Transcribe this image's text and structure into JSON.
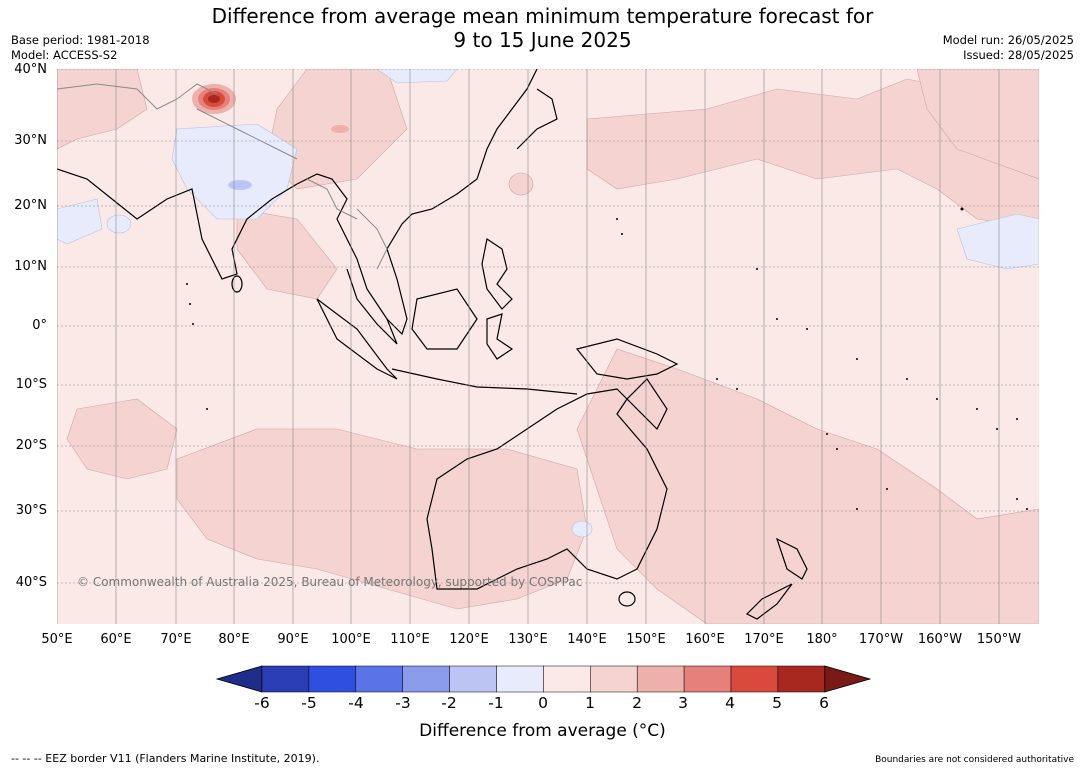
{
  "title_line1": "Difference from average mean minimum temperature forecast for",
  "title_line2": "9 to 15 June 2025",
  "base_period": "Base period: 1981-2018",
  "model": "Model: ACCESS-S2",
  "model_run": "Model run: 26/05/2025",
  "issued": "Issued: 28/05/2025",
  "copyright": "© Commonwealth of Australia 2025, Bureau of Meteorology, supported by COSPPac",
  "lat_labels": [
    "40°N",
    "30°N",
    "20°N",
    "10°N",
    "0°",
    "10°S",
    "20°S",
    "30°S",
    "40°S"
  ],
  "lon_labels": [
    "50°E",
    "60°E",
    "70°E",
    "80°E",
    "90°E",
    "100°E",
    "110°E",
    "120°E",
    "130°E",
    "140°E",
    "150°E",
    "160°E",
    "170°E",
    "180°",
    "170°W",
    "160°W",
    "150°W"
  ],
  "colorbar": {
    "ticks": [
      "-6",
      "-5",
      "-4",
      "-3",
      "-2",
      "-1",
      "0",
      "1",
      "2",
      "3",
      "4",
      "5",
      "6"
    ],
    "colors": [
      "#1f2d8a",
      "#2a3db5",
      "#2f4fe0",
      "#5a73e6",
      "#8a9bec",
      "#bcc4f4",
      "#e8ebfb",
      "#fbe9e8",
      "#f4d3d1",
      "#eeb0ab",
      "#e6807a",
      "#d94a3c",
      "#a8271f",
      "#7a1a16"
    ],
    "title": "Difference from average (°C)"
  },
  "footer_left": "--  --  -- EEZ border V11 (Flanders Marine Institute, 2019).",
  "footer_right": "Boundaries are not considered authoritative"
}
